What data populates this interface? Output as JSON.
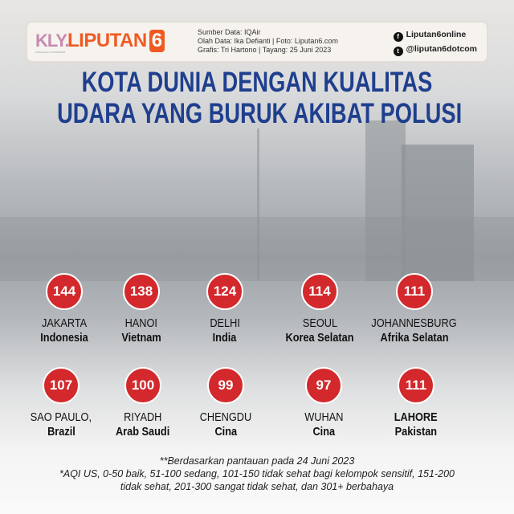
{
  "header": {
    "logo_kly": "KLY.",
    "logo_kly_sub": "KAPANLAGI YOUNIVERSE",
    "logo_liputan": "LIPUTAN",
    "logo_six": "6",
    "source": "Sumber Data: IQAir",
    "data_processing": "Olah Data: Ika Defianti | Foto: Liputan6.com",
    "graphics": "Grafis: Tri Hartono | Tayang: 25 Juni 2023",
    "facebook": "Liputan6online",
    "twitter": "@liputan6dotcom"
  },
  "title": {
    "line1": "KOTA DUNIA DENGAN KUALITAS",
    "line2": "UDARA YANG BURUK AKIBAT POLUSI"
  },
  "accent_color": "#d3282c",
  "title_color": "#1f3f8e",
  "cities": [
    {
      "aqi": "144",
      "city": "JAKARTA",
      "country": "Indonesia"
    },
    {
      "aqi": "138",
      "city": "HANOI",
      "country": "Vietnam"
    },
    {
      "aqi": "124",
      "city": "DELHI",
      "country": "India"
    },
    {
      "aqi": "114",
      "city": "SEOUL",
      "country": "Korea Selatan"
    },
    {
      "aqi": "111",
      "city": "JOHANNESBURG",
      "country": "Afrika Selatan"
    },
    {
      "aqi": "107",
      "city": "SAO PAULO,",
      "country": "Brazil"
    },
    {
      "aqi": "100",
      "city": "RIYADH",
      "country": "Arab Saudi"
    },
    {
      "aqi": "99",
      "city": "CHENGDU",
      "country": "Cina"
    },
    {
      "aqi": "97",
      "city": "WUHAN",
      "country": "Cina"
    },
    {
      "aqi": "111",
      "city": "LAHORE",
      "country": "Pakistan"
    }
  ],
  "footnote": {
    "line1": "**Berdasarkan pantauan pada 24 Juni 2023",
    "line2": "*AQI US, 0-50 baik, 51-100 sedang, 101-150 tidak sehat bagi kelompok sensitif, 151-200",
    "line3": "tidak sehat, 201-300 sangat tidak sehat, dan 301+ berbahaya"
  }
}
